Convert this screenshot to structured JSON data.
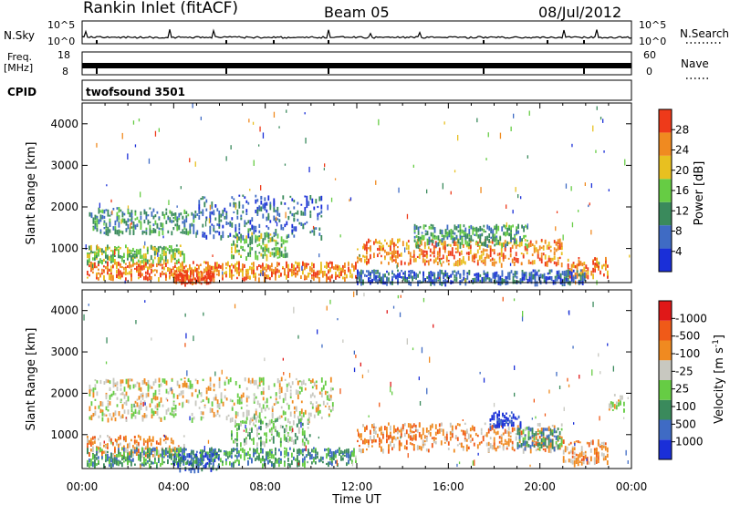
{
  "header": {
    "station": "Rankin Inlet (fitACF)",
    "beam": "Beam 05",
    "date": "08/Jul/2012"
  },
  "strips": {
    "nsky_label": "N.Sky",
    "nsearch_label": "N.Search",
    "freq_label": "Freq.",
    "freq_unit": "[MHz]",
    "nave_label": "Nave",
    "cpid_label": "CPID",
    "cpid_value": "twofsound 3501",
    "nsky_ticks": [
      "10^5",
      "10^0"
    ],
    "freq_ticks": [
      "18",
      "8"
    ],
    "nave_ticks": [
      "60",
      "0"
    ]
  },
  "chart_data": [
    {
      "type": "heatmap",
      "panel": "power",
      "ylabel": "Slant Range [km]",
      "xlabel": "",
      "x_ticks": [
        "00:00",
        "04:00",
        "08:00",
        "12:00",
        "16:00",
        "20:00",
        "00:00"
      ],
      "y_ticks": [
        1000,
        2000,
        3000,
        4000
      ],
      "ylim": [
        180,
        4500
      ],
      "xlim_hours": [
        0,
        24
      ],
      "colorbar": {
        "label": "Power [dB]",
        "ticks": [
          "4",
          "8",
          "12",
          "16",
          "20",
          "24",
          "28"
        ],
        "colors": [
          "#1a2fd8",
          "#3f6bc4",
          "#3a8a5c",
          "#66cc44",
          "#e8c020",
          "#f08a20",
          "#ee3a1a"
        ]
      },
      "regions": [
        {
          "t0": 0.2,
          "t1": 12.0,
          "r0": 300,
          "r1": 700,
          "level": 5
        },
        {
          "t0": 0.2,
          "t1": 4.5,
          "r0": 700,
          "r1": 1100,
          "level": 3
        },
        {
          "t0": 4.0,
          "t1": 5.8,
          "r0": 180,
          "r1": 500,
          "level": 6
        },
        {
          "t0": 0.3,
          "t1": 5.0,
          "r0": 1400,
          "r1": 2000,
          "level": 2
        },
        {
          "t0": 5.0,
          "t1": 10.5,
          "r0": 1300,
          "r1": 2300,
          "level": 1
        },
        {
          "t0": 6.5,
          "t1": 9.0,
          "r0": 800,
          "r1": 1400,
          "level": 3
        },
        {
          "t0": 12.0,
          "t1": 21.0,
          "r0": 650,
          "r1": 1250,
          "level": 5
        },
        {
          "t0": 14.5,
          "t1": 19.5,
          "r0": 1100,
          "r1": 1600,
          "level": 2
        },
        {
          "t0": 21.2,
          "t1": 23.0,
          "r0": 350,
          "r1": 800,
          "level": 5
        },
        {
          "t0": 12.0,
          "t1": 22.0,
          "r0": 200,
          "r1": 500,
          "level": 1
        }
      ]
    },
    {
      "type": "heatmap",
      "panel": "velocity",
      "ylabel": "Slant Range [km]",
      "xlabel": "Time UT",
      "x_ticks": [
        "00:00",
        "04:00",
        "08:00",
        "12:00",
        "16:00",
        "20:00",
        "00:00"
      ],
      "y_ticks": [
        1000,
        2000,
        3000,
        4000
      ],
      "ylim": [
        180,
        4500
      ],
      "xlim_hours": [
        0,
        24
      ],
      "colorbar": {
        "label": "Velocity [m s",
        "label_sup": "-1",
        "label_end": "]",
        "ticks": [
          "1000",
          "500",
          "100",
          "25",
          "-25",
          "-100",
          "-500",
          "-1000"
        ],
        "colors": [
          "#1a2fd8",
          "#3f6bc4",
          "#3a8a5c",
          "#66cc44",
          "#c8c8c0",
          "#f08a20",
          "#f05a18",
          "#e01818"
        ]
      },
      "regions": [
        {
          "t0": 0.2,
          "t1": 4.5,
          "r0": 500,
          "r1": 1000,
          "level": 5
        },
        {
          "t0": 0.2,
          "t1": 12.0,
          "r0": 300,
          "r1": 700,
          "level": 2
        },
        {
          "t0": 4.0,
          "t1": 6.0,
          "r0": 180,
          "r1": 600,
          "level": 1
        },
        {
          "t0": 0.3,
          "t1": 11.0,
          "r0": 1400,
          "r1": 2400,
          "level": 4
        },
        {
          "t0": 6.5,
          "t1": 10.0,
          "r0": 800,
          "r1": 1400,
          "level": 3
        },
        {
          "t0": 12.0,
          "t1": 21.0,
          "r0": 650,
          "r1": 1300,
          "level": 5
        },
        {
          "t0": 17.8,
          "t1": 19.2,
          "r0": 1200,
          "r1": 1600,
          "level": 0
        },
        {
          "t0": 19.0,
          "t1": 21.0,
          "r0": 700,
          "r1": 1200,
          "level": 2
        },
        {
          "t0": 21.0,
          "t1": 23.0,
          "r0": 300,
          "r1": 900,
          "level": 5
        },
        {
          "t0": 23.0,
          "t1": 23.8,
          "r0": 1600,
          "r1": 2000,
          "level": 4
        }
      ]
    }
  ]
}
